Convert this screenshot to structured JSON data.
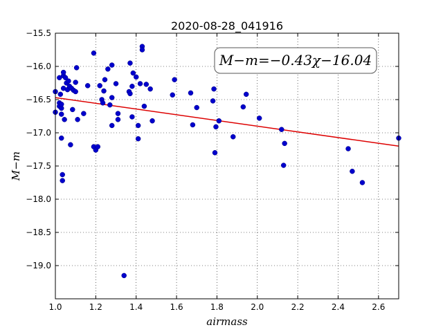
{
  "chart_data": {
    "type": "scatter",
    "title": "2020-08-28_041916",
    "xlabel": "airmass",
    "ylabel": "M−m",
    "xlim": [
      1.0,
      2.7
    ],
    "ylim": [
      -19.5,
      -15.5
    ],
    "y_inverted": true,
    "grid": true,
    "xticks": [
      1.0,
      1.2,
      1.4,
      1.6,
      1.8,
      2.0,
      2.2,
      2.4,
      2.6
    ],
    "yticks": [
      -15.5,
      -16.0,
      -16.5,
      -17.0,
      -17.5,
      -18.0,
      -18.5,
      -19.0
    ],
    "xtick_labels": [
      "1.0",
      "1.2",
      "1.4",
      "1.6",
      "1.8",
      "2.0",
      "2.2",
      "2.4",
      "2.6"
    ],
    "ytick_labels": [
      "−15.5",
      "−16.0",
      "−16.5",
      "−17.0",
      "−17.5",
      "−18.0",
      "−18.5",
      "−19.0"
    ],
    "point_color": "#0000cc",
    "fit_color": "#dd0000",
    "annotation": "M−m=−0.43χ−16.04",
    "fit": {
      "slope": -0.43,
      "intercept": -16.04
    },
    "points": [
      [
        1.0,
        -16.38
      ],
      [
        1.0,
        -16.69
      ],
      [
        1.02,
        -16.55
      ],
      [
        1.02,
        -16.6
      ],
      [
        1.02,
        -16.17
      ],
      [
        1.025,
        -16.42
      ],
      [
        1.03,
        -16.63
      ],
      [
        1.03,
        -16.57
      ],
      [
        1.03,
        -17.08
      ],
      [
        1.03,
        -16.72
      ],
      [
        1.035,
        -17.63
      ],
      [
        1.035,
        -17.72
      ],
      [
        1.04,
        -16.14
      ],
      [
        1.04,
        -16.09
      ],
      [
        1.04,
        -16.33
      ],
      [
        1.045,
        -16.8
      ],
      [
        1.05,
        -16.17
      ],
      [
        1.055,
        -16.25
      ],
      [
        1.06,
        -16.35
      ],
      [
        1.065,
        -16.22
      ],
      [
        1.07,
        -16.3
      ],
      [
        1.075,
        -17.18
      ],
      [
        1.08,
        -16.33
      ],
      [
        1.085,
        -16.65
      ],
      [
        1.09,
        -16.36
      ],
      [
        1.1,
        -16.24
      ],
      [
        1.1,
        -16.38
      ],
      [
        1.105,
        -16.02
      ],
      [
        1.11,
        -16.8
      ],
      [
        1.14,
        -16.71
      ],
      [
        1.16,
        -16.29
      ],
      [
        1.19,
        -17.21
      ],
      [
        1.19,
        -15.8
      ],
      [
        1.2,
        -17.26
      ],
      [
        1.21,
        -17.21
      ],
      [
        1.22,
        -16.29
      ],
      [
        1.23,
        -16.5
      ],
      [
        1.235,
        -16.55
      ],
      [
        1.24,
        -16.37
      ],
      [
        1.245,
        -16.2
      ],
      [
        1.26,
        -16.04
      ],
      [
        1.27,
        -16.58
      ],
      [
        1.28,
        -15.98
      ],
      [
        1.28,
        -16.47
      ],
      [
        1.28,
        -16.89
      ],
      [
        1.3,
        -16.26
      ],
      [
        1.31,
        -16.71
      ],
      [
        1.31,
        -16.8
      ],
      [
        1.34,
        -19.15
      ],
      [
        1.365,
        -16.38
      ],
      [
        1.37,
        -16.41
      ],
      [
        1.37,
        -15.95
      ],
      [
        1.38,
        -16.3
      ],
      [
        1.38,
        -16.76
      ],
      [
        1.385,
        -16.1
      ],
      [
        1.4,
        -16.16
      ],
      [
        1.41,
        -16.89
      ],
      [
        1.41,
        -17.09
      ],
      [
        1.42,
        -16.26
      ],
      [
        1.43,
        -15.7
      ],
      [
        1.43,
        -15.75
      ],
      [
        1.44,
        -16.6
      ],
      [
        1.45,
        -16.27
      ],
      [
        1.47,
        -16.34
      ],
      [
        1.48,
        -16.82
      ],
      [
        1.58,
        -16.43
      ],
      [
        1.59,
        -16.2
      ],
      [
        1.67,
        -16.4
      ],
      [
        1.68,
        -16.88
      ],
      [
        1.7,
        -16.62
      ],
      [
        1.78,
        -16.52
      ],
      [
        1.785,
        -16.34
      ],
      [
        1.79,
        -17.3
      ],
      [
        1.795,
        -16.91
      ],
      [
        1.81,
        -16.82
      ],
      [
        1.88,
        -17.06
      ],
      [
        1.93,
        -16.61
      ],
      [
        1.945,
        -16.42
      ],
      [
        2.01,
        -16.78
      ],
      [
        2.12,
        -16.95
      ],
      [
        2.13,
        -17.49
      ],
      [
        2.135,
        -17.16
      ],
      [
        2.45,
        -17.24
      ],
      [
        2.47,
        -17.58
      ],
      [
        2.52,
        -17.75
      ],
      [
        2.7,
        -17.08
      ]
    ]
  }
}
